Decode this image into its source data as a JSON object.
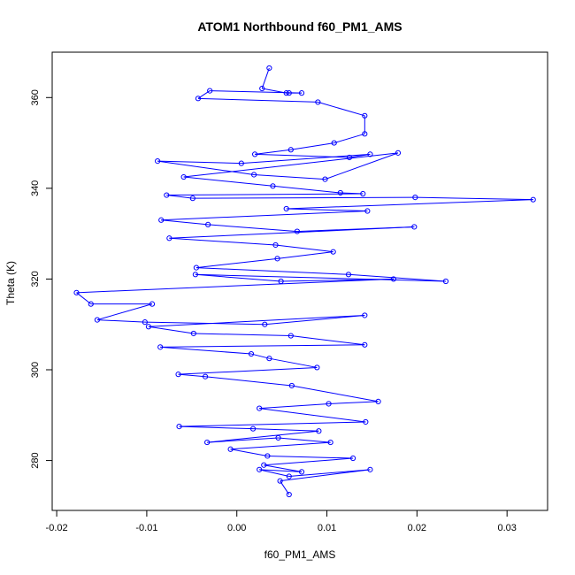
{
  "chart_data": {
    "type": "scatter",
    "title": "ATOM1 Northbound f60_PM1_AMS",
    "xlabel": "f60_PM1_AMS",
    "ylabel": "Theta (K)",
    "xlim": [
      -0.0205,
      0.0345
    ],
    "ylim": [
      269.0,
      370.0
    ],
    "xticks": [
      "-0.02",
      "-0.01",
      "0.00",
      "0.01",
      "0.02",
      "0.03"
    ],
    "xtick_values": [
      -0.02,
      -0.01,
      0.0,
      0.01,
      0.02,
      0.03
    ],
    "yticks": [
      "280",
      "300",
      "320",
      "340",
      "360"
    ],
    "ytick_values": [
      280,
      300,
      320,
      340,
      360
    ],
    "series_color": "#0000ff",
    "marker": "open-circle",
    "connected": true,
    "grid": false,
    "x": [
      0.0036,
      0.0028,
      0.0055,
      0.0058,
      0.0072,
      -0.003,
      -0.0043,
      0.009,
      0.0142,
      0.0142,
      0.0108,
      0.006,
      0.002,
      0.0125,
      0.0148,
      0.0005,
      -0.0088,
      0.0019,
      0.0098,
      0.0179,
      -0.0059,
      0.004,
      0.0115,
      0.014,
      -0.0078,
      -0.0049,
      0.0198,
      0.0329,
      0.0055,
      0.0145,
      -0.0084,
      -0.0032,
      0.0067,
      0.0197,
      -0.0075,
      0.0043,
      0.0107,
      0.0045,
      -0.0045,
      0.0124,
      0.0232,
      -0.0046,
      0.0049,
      0.0174,
      -0.0178,
      -0.0162,
      -0.0094,
      -0.0155,
      -0.0102,
      0.0031,
      0.0142,
      -0.0098,
      -0.0048,
      0.006,
      0.0142,
      -0.0085,
      0.0016,
      0.0036,
      0.0089,
      -0.0065,
      -0.0035,
      0.0061,
      0.0157,
      0.0102,
      0.0025,
      0.0143,
      -0.0064,
      0.0018,
      0.0091,
      -0.0033,
      0.0046,
      0.0104,
      -0.0007,
      0.0034,
      0.0129,
      0.003,
      0.0072,
      0.0025,
      0.0058,
      0.0148,
      0.0048,
      0.0058
    ],
    "y": [
      366.5,
      362.0,
      361.0,
      361.0,
      361.0,
      361.5,
      359.8,
      359.0,
      356.0,
      352.0,
      350.0,
      348.5,
      347.5,
      346.8,
      347.5,
      345.5,
      346.0,
      343.0,
      342.0,
      347.8,
      342.5,
      340.5,
      339.0,
      338.8,
      338.5,
      337.8,
      338.0,
      337.5,
      335.5,
      335.0,
      333.0,
      332.0,
      330.5,
      331.5,
      329.0,
      327.5,
      326.0,
      324.5,
      322.5,
      321.0,
      319.5,
      321.0,
      319.5,
      320.0,
      317.0,
      314.5,
      314.5,
      311.0,
      310.5,
      310.0,
      312.0,
      309.5,
      308.0,
      307.5,
      305.5,
      305.0,
      303.5,
      302.5,
      300.5,
      299.0,
      298.5,
      296.5,
      293.0,
      292.5,
      291.5,
      288.5,
      287.5,
      287.0,
      286.5,
      284.0,
      285.0,
      284.0,
      282.5,
      281.0,
      280.5,
      279.0,
      277.5,
      278.0,
      276.5,
      278.0,
      275.5,
      272.5
    ]
  }
}
